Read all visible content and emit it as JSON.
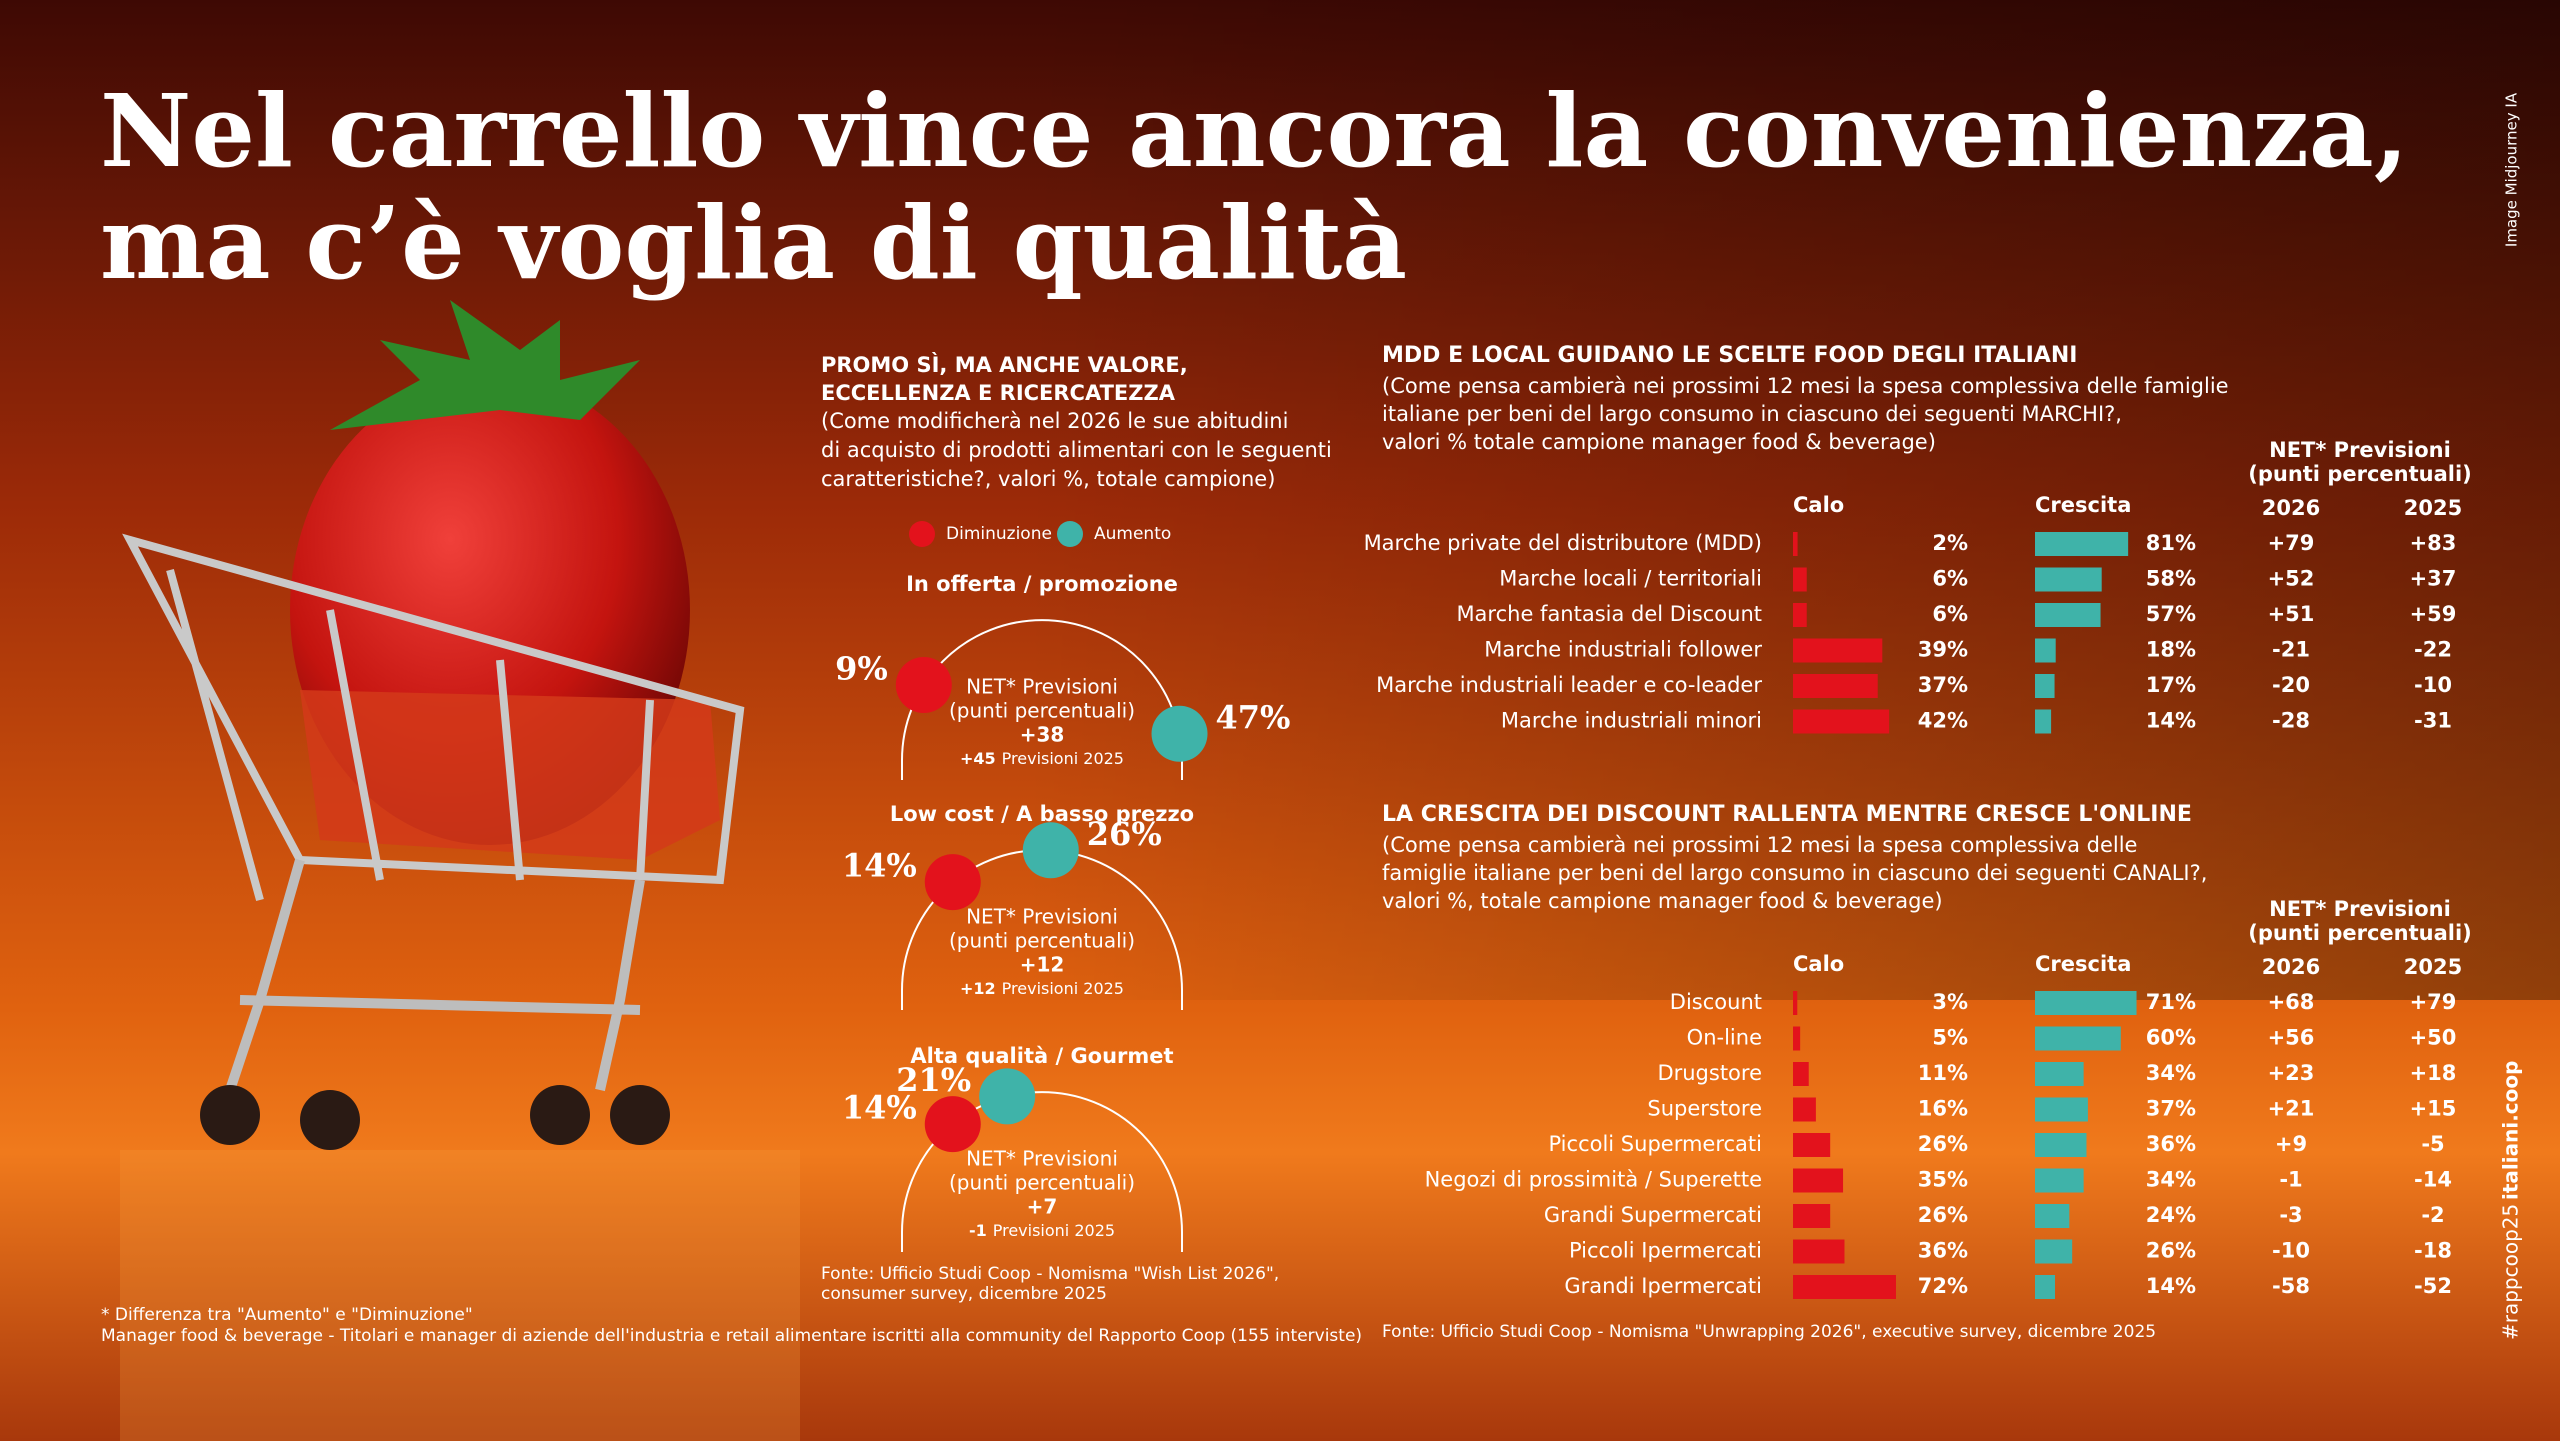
{
  "header": {
    "title_lines": [
      "Nel carrello vince ancora la convenienza,",
      "ma c’è voglia di qualità"
    ],
    "image_credit": "Image Midjourney IA",
    "hashtag": "#rappcoop25",
    "site": "italiani.coop"
  },
  "promo": {
    "title_lines": [
      "PROMO SÌ, MA ANCHE VALORE,",
      "ECCELLENZA E RICERCATEZZA"
    ],
    "subtitle_lines": [
      "(Come modificherà nel 2026 le sue abitudini",
      "di acquisto di prodotti alimentari con le seguenti",
      "caratteristiche?, valori %, totale campione)"
    ],
    "legend": [
      {
        "name": "Diminuzione",
        "color": "#e3121c"
      },
      {
        "name": "Aumento",
        "color": "#3fb3a9"
      }
    ],
    "net_lines": [
      "NET* Previsioni",
      "(punti percentuali)"
    ],
    "previsioni_label": "Previsioni 2025",
    "gauges": [
      {
        "title": "In offerta / promozione",
        "diminuzione": 9,
        "diminuzione_label": "9%",
        "aumento": 47,
        "aumento_label": "47%",
        "net": "+38",
        "net_2025": "+45"
      },
      {
        "title": "Low cost / A basso prezzo",
        "diminuzione": 14,
        "diminuzione_label": "14%",
        "aumento": 26,
        "aumento_label": "26%",
        "net": "+12",
        "net_2025": "+12"
      },
      {
        "title": "Alta qualità / Gourmet",
        "diminuzione": 14,
        "diminuzione_label": "14%",
        "aumento": 21,
        "aumento_label": "21%",
        "net": "+7",
        "net_2025": "-1"
      }
    ],
    "source_lines": [
      "Fonte: Ufficio Studi Coop - Nomisma \"Wish List 2026\",",
      "consumer survey, dicembre 2025"
    ]
  },
  "mdd": {
    "title": "MDD E LOCAL GUIDANO LE SCELTE FOOD DEGLI ITALIANI",
    "subtitle_lines": [
      "(Come pensa cambierà nei prossimi 12 mesi la spesa complessiva delle famiglie",
      "italiane per beni del largo consumo in ciascuno dei seguenti MARCHI?,",
      "valori % totale campione manager food & beverage)"
    ],
    "calo_header": "Calo",
    "crescita_header": "Crescita",
    "net_lines": [
      "NET* Previsioni",
      "(punti percentuali)"
    ],
    "years": [
      "2026",
      "2025"
    ],
    "categories": [
      "Marche private del distributore (MDD)",
      "Marche locali / territoriali",
      "Marche fantasia del Discount",
      "Marche industriali follower",
      "Marche industriali leader e co-leader",
      "Marche industriali minori"
    ],
    "calo": {
      "color": "#e3121c",
      "values": [
        2,
        6,
        6,
        39,
        37,
        42
      ],
      "value_labels": [
        "2%",
        "6%",
        "6%",
        "39%",
        "37%",
        "42%"
      ]
    },
    "crescita": {
      "color": "#3fb3a9",
      "values": [
        81,
        58,
        57,
        18,
        17,
        14
      ],
      "value_labels": [
        "81%",
        "58%",
        "57%",
        "18%",
        "17%",
        "14%"
      ]
    },
    "net_2026": [
      "+79",
      "+52",
      "+51",
      "-21",
      "-20",
      "-28"
    ],
    "net_2025": [
      "+83",
      "+37",
      "+59",
      "-22",
      "-10",
      "-31"
    ]
  },
  "canali": {
    "title": "LA CRESCITA DEI DISCOUNT RALLENTA MENTRE CRESCE L'ONLINE",
    "subtitle_lines": [
      "(Come pensa cambierà nei prossimi 12 mesi la spesa complessiva delle",
      "famiglie italiane per beni del largo consumo in ciascuno dei seguenti CANALI?,",
      "valori %, totale campione manager food & beverage)"
    ],
    "calo_header": "Calo",
    "crescita_header": "Crescita",
    "net_lines": [
      "NET* Previsioni",
      "(punti percentuali)"
    ],
    "years": [
      "2026",
      "2025"
    ],
    "categories": [
      "Discount",
      "On-line",
      "Drugstore",
      "Superstore",
      "Piccoli Supermercati",
      "Negozi di prossimità / Superette",
      "Grandi Supermercati",
      "Piccoli Ipermercati",
      "Grandi Ipermercati"
    ],
    "calo": {
      "color": "#e3121c",
      "values": [
        3,
        5,
        11,
        16,
        26,
        35,
        26,
        36,
        72
      ],
      "value_labels": [
        "3%",
        "5%",
        "11%",
        "16%",
        "26%",
        "35%",
        "26%",
        "36%",
        "72%"
      ]
    },
    "crescita": {
      "color": "#3fb3a9",
      "values": [
        71,
        60,
        34,
        37,
        36,
        34,
        24,
        26,
        14
      ],
      "value_labels": [
        "71%",
        "60%",
        "34%",
        "37%",
        "36%",
        "34%",
        "24%",
        "26%",
        "14%"
      ]
    },
    "net_2026": [
      "+68",
      "+56",
      "+23",
      "+21",
      "+9",
      "-1",
      "-3",
      "-10",
      "-58"
    ],
    "net_2025": [
      "+79",
      "+50",
      "+18",
      "+15",
      "-5",
      "-14",
      "-2",
      "-18",
      "-52"
    ],
    "source": "Fonte: Ufficio Studi Coop - Nomisma \"Unwrapping 2026\", executive survey, dicembre 2025"
  },
  "footnotes": [
    "* Differenza tra \"Aumento\" e \"Diminuzione\"",
    "Manager food & beverage -  Titolari e manager di aziende dell'industria e retail alimentare iscritti alla community del Rapporto Coop (155 interviste)"
  ]
}
